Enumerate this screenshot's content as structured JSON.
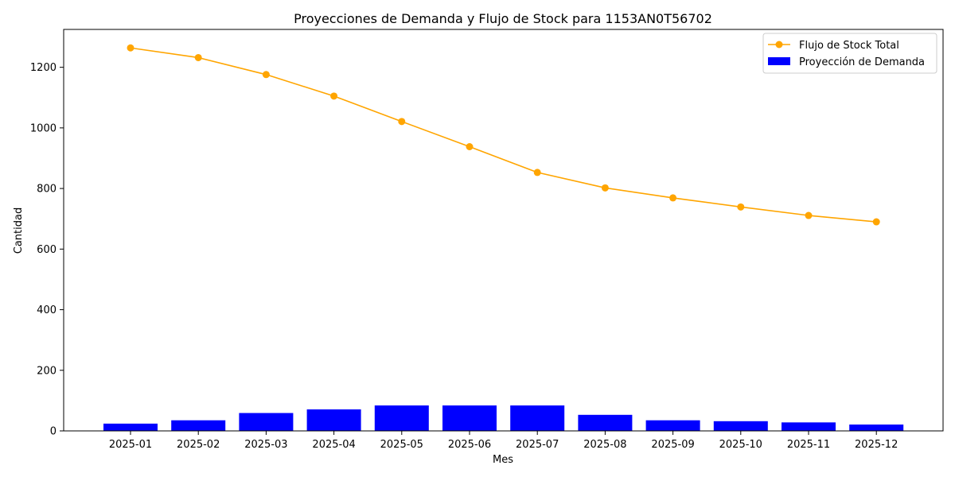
{
  "chart_data": {
    "type": "bar+line",
    "title": "Proyecciones de Demanda y Flujo de Stock para 1153AN0T56702",
    "xlabel": "Mes",
    "ylabel": "Cantidad",
    "categories": [
      "2025-01",
      "2025-02",
      "2025-03",
      "2025-04",
      "2025-05",
      "2025-06",
      "2025-07",
      "2025-08",
      "2025-09",
      "2025-10",
      "2025-11",
      "2025-12"
    ],
    "ylim": [
      0,
      1325
    ],
    "yticks": [
      0,
      200,
      400,
      600,
      800,
      1000,
      1200
    ],
    "grid": false,
    "legend_position": "top-right",
    "series": [
      {
        "name": "Flujo de Stock Total",
        "kind": "line",
        "color": "#ffa500",
        "marker": "circle",
        "values": [
          1264,
          1232,
          1176,
          1105,
          1021,
          938,
          853,
          802,
          769,
          739,
          711,
          690
        ]
      },
      {
        "name": "Proyección de Demanda",
        "kind": "bar",
        "color": "#0000ff",
        "values": [
          24,
          35,
          59,
          71,
          84,
          84,
          84,
          53,
          35,
          32,
          28,
          21
        ]
      }
    ]
  }
}
